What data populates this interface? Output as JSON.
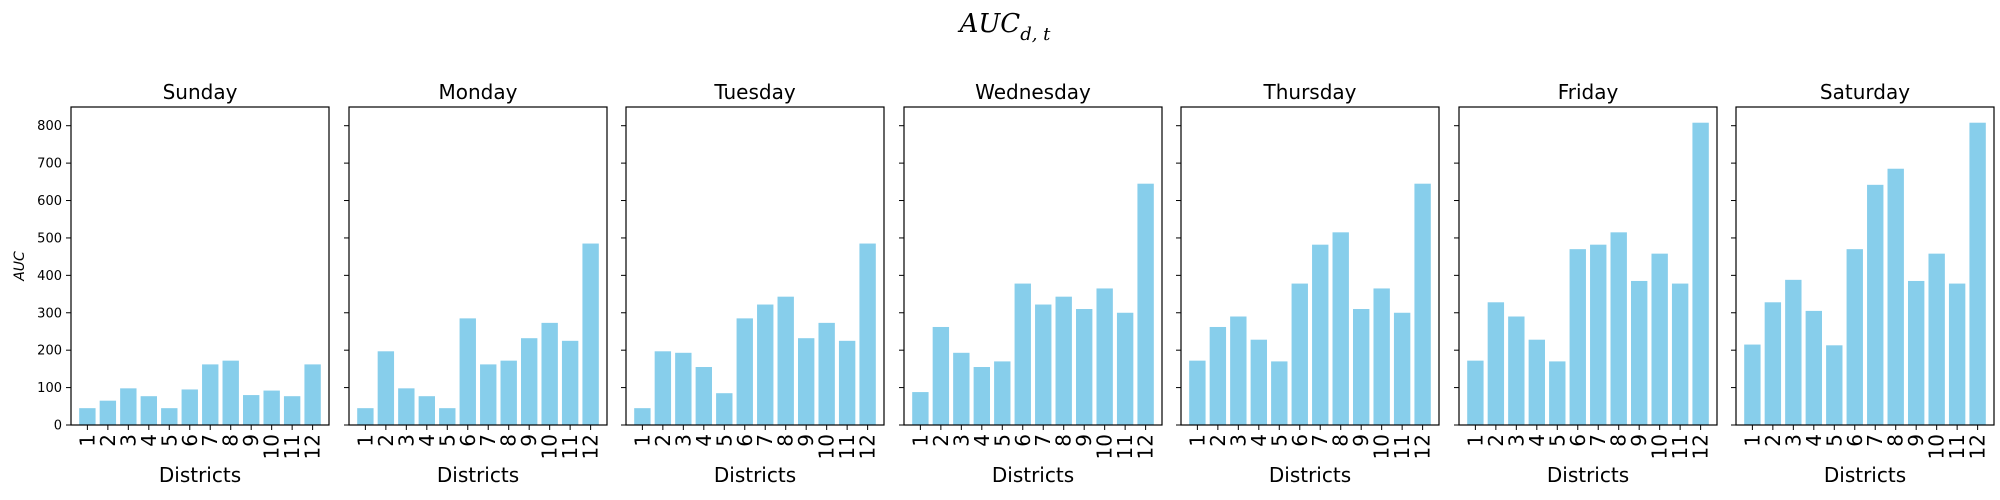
{
  "figure": {
    "suptitle_main": "AUC",
    "suptitle_sub": "d, t"
  },
  "chart_data": [
    {
      "type": "bar",
      "title": "Sunday",
      "xlabel": "Districts",
      "ylabel": "AUC",
      "categories": [
        "1",
        "2",
        "3",
        "4",
        "5",
        "6",
        "7",
        "8",
        "9",
        "10",
        "11",
        "12"
      ],
      "values": [
        45,
        65,
        98,
        77,
        45,
        95,
        162,
        172,
        80,
        92,
        77,
        162
      ],
      "ylim": [
        0,
        850
      ],
      "yticks": [
        0,
        100,
        200,
        300,
        400,
        500,
        600,
        700,
        800
      ],
      "grid": false,
      "bar_color": "#87ceeb"
    },
    {
      "type": "bar",
      "title": "Monday",
      "xlabel": "Districts",
      "ylabel": "",
      "categories": [
        "1",
        "2",
        "3",
        "4",
        "5",
        "6",
        "7",
        "8",
        "9",
        "10",
        "11",
        "12"
      ],
      "values": [
        45,
        197,
        98,
        77,
        45,
        285,
        162,
        172,
        232,
        273,
        225,
        485
      ],
      "ylim": [
        0,
        850
      ],
      "yticks": [
        0,
        100,
        200,
        300,
        400,
        500,
        600,
        700,
        800
      ],
      "grid": false,
      "bar_color": "#87ceeb"
    },
    {
      "type": "bar",
      "title": "Tuesday",
      "xlabel": "Districts",
      "ylabel": "",
      "categories": [
        "1",
        "2",
        "3",
        "4",
        "5",
        "6",
        "7",
        "8",
        "9",
        "10",
        "11",
        "12"
      ],
      "values": [
        45,
        197,
        193,
        155,
        85,
        285,
        322,
        343,
        232,
        273,
        225,
        485
      ],
      "ylim": [
        0,
        850
      ],
      "yticks": [
        0,
        100,
        200,
        300,
        400,
        500,
        600,
        700,
        800
      ],
      "grid": false,
      "bar_color": "#87ceeb"
    },
    {
      "type": "bar",
      "title": "Wednesday",
      "xlabel": "Districts",
      "ylabel": "",
      "categories": [
        "1",
        "2",
        "3",
        "4",
        "5",
        "6",
        "7",
        "8",
        "9",
        "10",
        "11",
        "12"
      ],
      "values": [
        88,
        262,
        193,
        155,
        170,
        378,
        322,
        343,
        310,
        365,
        300,
        645
      ],
      "ylim": [
        0,
        850
      ],
      "yticks": [
        0,
        100,
        200,
        300,
        400,
        500,
        600,
        700,
        800
      ],
      "grid": false,
      "bar_color": "#87ceeb"
    },
    {
      "type": "bar",
      "title": "Thursday",
      "xlabel": "Districts",
      "ylabel": "",
      "categories": [
        "1",
        "2",
        "3",
        "4",
        "5",
        "6",
        "7",
        "8",
        "9",
        "10",
        "11",
        "12"
      ],
      "values": [
        172,
        262,
        290,
        228,
        170,
        378,
        482,
        515,
        310,
        365,
        300,
        645
      ],
      "ylim": [
        0,
        850
      ],
      "yticks": [
        0,
        100,
        200,
        300,
        400,
        500,
        600,
        700,
        800
      ],
      "grid": false,
      "bar_color": "#87ceeb"
    },
    {
      "type": "bar",
      "title": "Friday",
      "xlabel": "Districts",
      "ylabel": "",
      "categories": [
        "1",
        "2",
        "3",
        "4",
        "5",
        "6",
        "7",
        "8",
        "9",
        "10",
        "11",
        "12"
      ],
      "values": [
        172,
        328,
        290,
        228,
        170,
        470,
        482,
        515,
        385,
        458,
        378,
        808
      ],
      "ylim": [
        0,
        850
      ],
      "yticks": [
        0,
        100,
        200,
        300,
        400,
        500,
        600,
        700,
        800
      ],
      "grid": false,
      "bar_color": "#87ceeb"
    },
    {
      "type": "bar",
      "title": "Saturday",
      "xlabel": "Districts",
      "ylabel": "",
      "categories": [
        "1",
        "2",
        "3",
        "4",
        "5",
        "6",
        "7",
        "8",
        "9",
        "10",
        "11",
        "12"
      ],
      "values": [
        215,
        328,
        388,
        305,
        213,
        470,
        642,
        685,
        385,
        458,
        378,
        808
      ],
      "ylim": [
        0,
        850
      ],
      "yticks": [
        0,
        100,
        200,
        300,
        400,
        500,
        600,
        700,
        800
      ],
      "grid": false,
      "bar_color": "#87ceeb"
    }
  ]
}
